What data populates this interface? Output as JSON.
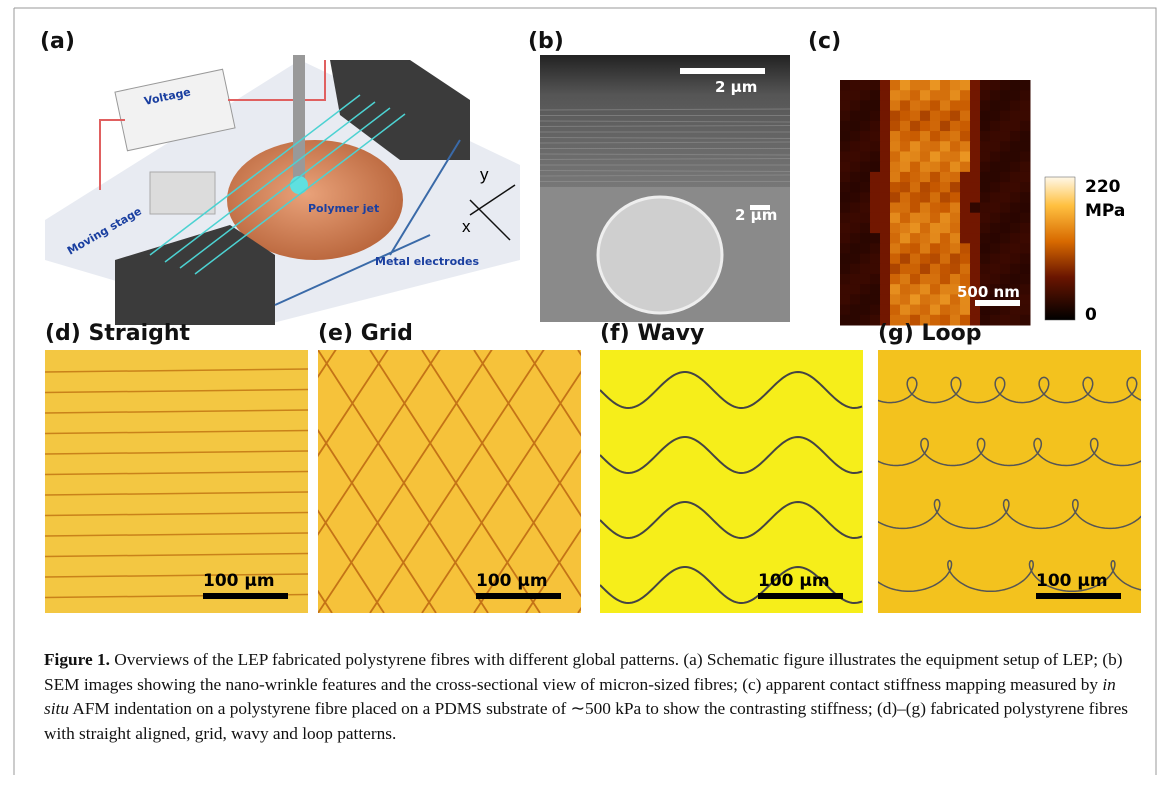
{
  "panels": {
    "a": {
      "label": "(a)",
      "voltage": "Voltage",
      "moving_stage": "Moving stage",
      "polymer_jet": "Polymer jet",
      "metal_electrodes": "Metal electrodes",
      "axis_y": "y",
      "axis_x": "x"
    },
    "b": {
      "label": "(b)",
      "scale_top": "2 μm",
      "scale_bottom": "2 μm"
    },
    "c": {
      "label": "(c)",
      "colorbar_max": "220",
      "colorbar_unit": "MPa",
      "colorbar_min": "0",
      "scale": "500 nm"
    },
    "d": {
      "label": "(d) Straight",
      "scale": "100 μm"
    },
    "e": {
      "label": "(e) Grid",
      "scale": "100 μm"
    },
    "f": {
      "label": "(f) Wavy",
      "scale": "100 μm"
    },
    "g": {
      "label": "(g) Loop",
      "scale": "100 μm"
    }
  },
  "caption": {
    "label": "Figure 1.",
    "text_1": "Overviews of the LEP fabricated polystyrene fibres with different global patterns. (a) Schematic figure illustrates the equipment setup of LEP; (b) SEM images showing the nano-wrinkle features and the cross-sectional view of micron-sized fibres; (c) apparent contact stiffness mapping measured by",
    "text_italic": "in situ",
    "text_2": "AFM indentation on a polystyrene fibre placed on a PDMS substrate of ∼500 kPa to show the contrasting stiffness; (d)–(g) fabricated polystyrene fibres with straight aligned, grid, wavy and loop patterns."
  }
}
